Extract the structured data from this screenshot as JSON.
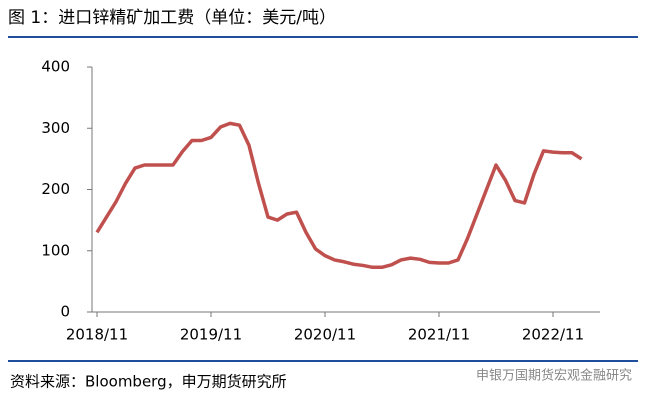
{
  "chart_data": {
    "type": "line",
    "title": "图 1：进口锌精矿加工费（单位：美元/吨）",
    "source": "资料来源：Bloomberg，申万期货研究所",
    "watermark": "申银万国期货宏观金融研究",
    "x": [
      "2018/11",
      "2018/12",
      "2019/01",
      "2019/02",
      "2019/03",
      "2019/04",
      "2019/05",
      "2019/06",
      "2019/07",
      "2019/08",
      "2019/09",
      "2019/10",
      "2019/11",
      "2019/12",
      "2020/01",
      "2020/02",
      "2020/03",
      "2020/04",
      "2020/05",
      "2020/06",
      "2020/07",
      "2020/08",
      "2020/09",
      "2020/10",
      "2020/11",
      "2020/12",
      "2021/01",
      "2021/02",
      "2021/03",
      "2021/04",
      "2021/05",
      "2021/06",
      "2021/07",
      "2021/08",
      "2021/09",
      "2021/10",
      "2021/11",
      "2021/12",
      "2022/01",
      "2022/02",
      "2022/03",
      "2022/04",
      "2022/05",
      "2022/06",
      "2022/07",
      "2022/08",
      "2022/09",
      "2022/10",
      "2022/11",
      "2022/12",
      "2023/01",
      "2023/02"
    ],
    "series": [
      {
        "name": "进口锌精矿加工费",
        "color": "#c0504d",
        "values": [
          130,
          155,
          180,
          210,
          235,
          240,
          240,
          240,
          240,
          262,
          280,
          280,
          285,
          302,
          308,
          305,
          272,
          210,
          155,
          150,
          160,
          163,
          130,
          103,
          92,
          85,
          82,
          78,
          76,
          73,
          73,
          77,
          85,
          88,
          86,
          81,
          80,
          80,
          85,
          120,
          160,
          200,
          240,
          215,
          182,
          178,
          225,
          263,
          261,
          260,
          260,
          250
        ]
      }
    ],
    "xticks": [
      "2018/11",
      "2019/11",
      "2020/11",
      "2021/11",
      "2022/11"
    ],
    "ylim": [
      0,
      400
    ],
    "yticks": [
      0,
      100,
      200,
      300,
      400
    ],
    "grid": false
  }
}
